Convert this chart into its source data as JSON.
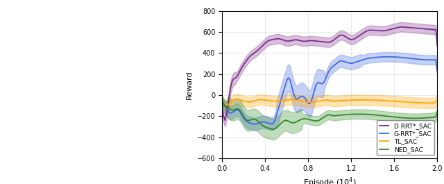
{
  "xlabel": "Episode (10$^4$)",
  "ylabel": "Reward",
  "xlim": [
    0,
    2.0
  ],
  "ylim": [
    -600,
    800
  ],
  "yticks": [
    -600,
    -400,
    -200,
    0,
    200,
    400,
    600,
    800
  ],
  "xticks": [
    0,
    0.4,
    0.8,
    1.2,
    1.6,
    2.0
  ],
  "legend_labels": [
    "D RRT*_SAC",
    "G-RRT*_SAC",
    "TL_SAC",
    "NED_SAC"
  ],
  "colors": {
    "D_RRT_SAC": "#7B2D8B",
    "G_RRT_SAC": "#4169E1",
    "TL_SAC": "#FFA500",
    "NED_SAC": "#2E8B22"
  },
  "figsize_chart": [
    3.2,
    2.65
  ],
  "figsize_full": [
    6.4,
    2.65
  ],
  "dpi": 100
}
